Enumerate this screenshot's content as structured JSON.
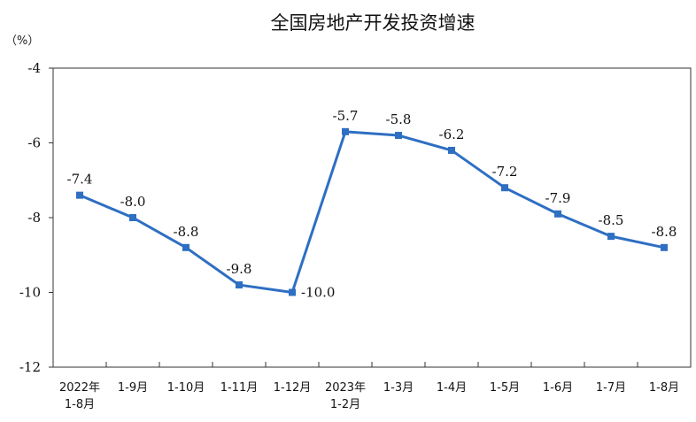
{
  "chart_data": {
    "type": "line",
    "title": "全国房地产开发投资增速",
    "unit_label": "（%）",
    "xlabel": "",
    "ylabel": "",
    "ylim": [
      -12,
      -4
    ],
    "yticks": [
      -4,
      -6,
      -8,
      -10,
      -12
    ],
    "grid": false,
    "categories": [
      [
        "2022年",
        "1-8月"
      ],
      [
        "1-9月"
      ],
      [
        "1-10月"
      ],
      [
        "1-11月"
      ],
      [
        "1-12月"
      ],
      [
        "2023年",
        "1-2月"
      ],
      [
        "1-3月"
      ],
      [
        "1-4月"
      ],
      [
        "1-5月"
      ],
      [
        "1-6月"
      ],
      [
        "1-7月"
      ],
      [
        "1-8月"
      ]
    ],
    "series": [
      {
        "color": "#2e6fc2",
        "values": [
          -7.4,
          -8.0,
          -8.8,
          -9.8,
          -10.0,
          -5.7,
          -5.8,
          -6.2,
          -7.2,
          -7.9,
          -8.5,
          -8.8
        ],
        "labels": [
          "-7.4",
          "-8.0",
          "-8.8",
          "-9.8",
          "-10.0",
          "-5.7",
          "-5.8",
          "-6.2",
          "-7.2",
          "-7.9",
          "-8.5",
          "-8.8"
        ]
      }
    ]
  }
}
